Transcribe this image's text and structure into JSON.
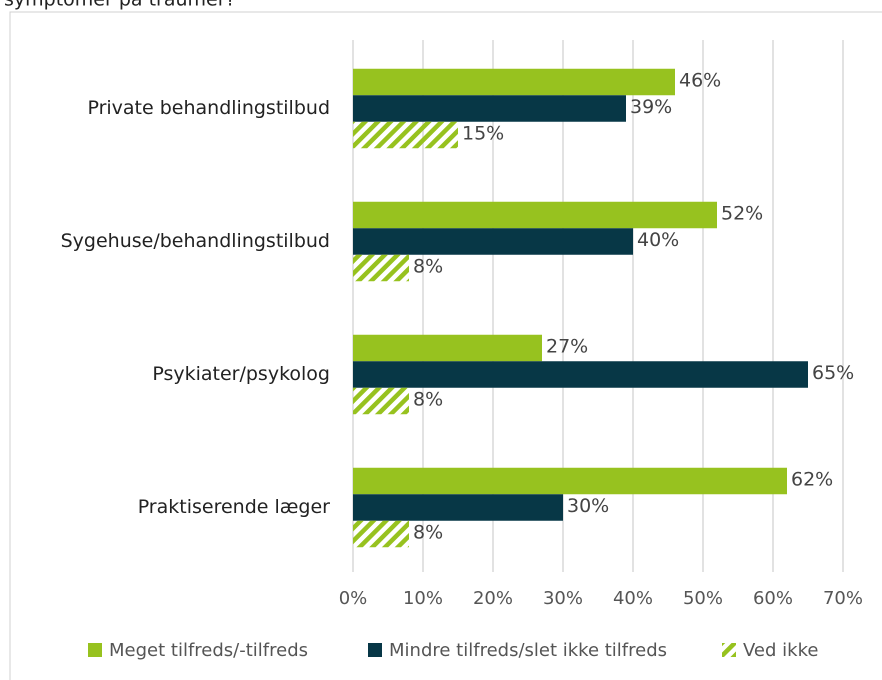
{
  "chart_data": {
    "type": "barh",
    "title": "symptomer på traumer?",
    "categories": [
      "Private behandlingstilbud",
      "Sygehuse/behandlingstilbud",
      "Psykiater/psykolog",
      "Praktiserende læger"
    ],
    "series": [
      {
        "name": "Meget tilfreds/-tilfreds",
        "color": "#97c21f",
        "values": [
          46,
          52,
          27,
          62
        ],
        "value_labels": [
          "46%",
          "52%",
          "27%",
          "62%"
        ]
      },
      {
        "name": "Mindre tilfreds/slet ikke tilfreds",
        "color": "#073746",
        "values": [
          39,
          40,
          65,
          30
        ],
        "value_labels": [
          "39%",
          "40%",
          "65%",
          "30%"
        ]
      },
      {
        "name": "Ved ikke",
        "color": "#97c21f",
        "pattern": "hatch",
        "values": [
          15,
          8,
          8,
          8
        ],
        "value_labels": [
          "15%",
          "8%",
          "8%",
          "8%"
        ]
      }
    ],
    "xlim": [
      0,
      70
    ],
    "xticks": [
      {
        "value": 0,
        "label": "0%"
      },
      {
        "value": 10,
        "label": "10%"
      },
      {
        "value": 20,
        "label": "20%"
      },
      {
        "value": 30,
        "label": "30%"
      },
      {
        "value": 40,
        "label": "40%"
      },
      {
        "value": 50,
        "label": "50%"
      },
      {
        "value": 60,
        "label": "60%"
      },
      {
        "value": 70,
        "label": "70%"
      }
    ],
    "grid": true,
    "legend": "bottom"
  }
}
